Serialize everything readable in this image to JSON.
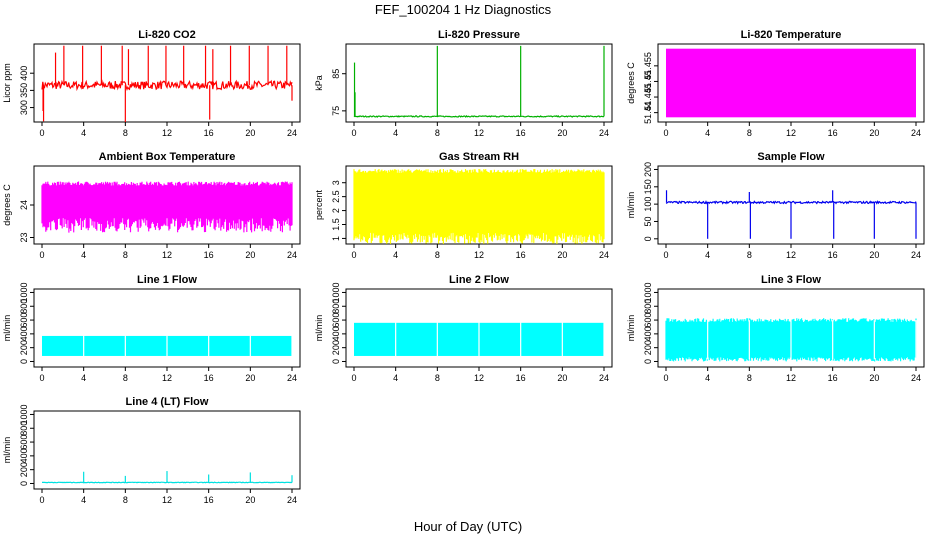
{
  "figure": {
    "title": "FEF_100204  1 Hz Diagnostics",
    "xlabel": "Hour of Day (UTC)"
  },
  "chart_data": [
    {
      "id": "co2",
      "type": "line",
      "title": "Li-820 CO2",
      "ylabel": "Licor ppm",
      "color": "#ff0000",
      "xlim": [
        0,
        24
      ],
      "xticks": [
        0,
        4,
        8,
        12,
        16,
        20,
        24
      ],
      "ylim": [
        258,
        485
      ],
      "yticks": [
        300,
        350,
        400
      ],
      "baseline": 365,
      "noise": 12,
      "spikes": [
        {
          "x": 0.1,
          "y": 290
        },
        {
          "x": 0.15,
          "y": 260
        },
        {
          "x": 1.3,
          "y": 460
        },
        {
          "x": 2.1,
          "y": 480
        },
        {
          "x": 3.9,
          "y": 480
        },
        {
          "x": 5.7,
          "y": 480
        },
        {
          "x": 7.7,
          "y": 480
        },
        {
          "x": 8.0,
          "y": 258
        },
        {
          "x": 8.3,
          "y": 470
        },
        {
          "x": 10.2,
          "y": 480
        },
        {
          "x": 11.9,
          "y": 480
        },
        {
          "x": 13.6,
          "y": 480
        },
        {
          "x": 15.7,
          "y": 480
        },
        {
          "x": 16.1,
          "y": 265
        },
        {
          "x": 16.4,
          "y": 470
        },
        {
          "x": 18.1,
          "y": 480
        },
        {
          "x": 19.9,
          "y": 480
        },
        {
          "x": 21.7,
          "y": 480
        },
        {
          "x": 23.5,
          "y": 480
        },
        {
          "x": 24.0,
          "y": 320
        }
      ]
    },
    {
      "id": "pressure",
      "type": "line",
      "title": "Li-820 Pressure",
      "ylabel": "kPa",
      "color": "#00b000",
      "xlim": [
        0,
        24
      ],
      "xticks": [
        0,
        4,
        8,
        12,
        16,
        20,
        24
      ],
      "ylim": [
        72,
        93
      ],
      "yticks": [
        75,
        85
      ],
      "baseline": 73.5,
      "noise": 0.15,
      "spikes": [
        {
          "x": 0.05,
          "y": 88.0
        },
        {
          "x": 0.1,
          "y": 80.0
        },
        {
          "x": 8.0,
          "y": 92.5
        },
        {
          "x": 16.0,
          "y": 92.5
        },
        {
          "x": 24.0,
          "y": 92.5
        }
      ]
    },
    {
      "id": "licor_temp",
      "type": "band",
      "title": "Li-820 Temperature",
      "ylabel": "degrees C",
      "color": "#ff00ff",
      "xlim": [
        0,
        24
      ],
      "xticks": [
        0,
        4,
        8,
        12,
        16,
        20,
        24
      ],
      "ylim": [
        51.437,
        51.462
      ],
      "yticks": [
        51.44,
        51.445,
        51.45,
        51.455
      ],
      "band": [
        51.4385,
        51.4605
      ]
    },
    {
      "id": "box_temp",
      "type": "band",
      "title": "Ambient Box Temperature",
      "ylabel": "degrees C",
      "color": "#ff00ff",
      "xlim": [
        0,
        24
      ],
      "xticks": [
        0,
        4,
        8,
        12,
        16,
        20,
        24
      ],
      "ylim": [
        22.8,
        25.2
      ],
      "yticks": [
        23.0,
        24.0
      ],
      "band": [
        23.6,
        24.6
      ],
      "band_jitter": 0.45
    },
    {
      "id": "rh",
      "type": "band",
      "title": "Gas Stream RH",
      "ylabel": "percent",
      "color": "#ffff00",
      "xlim": [
        0,
        24
      ],
      "xticks": [
        0,
        4,
        8,
        12,
        16,
        20,
        24
      ],
      "ylim": [
        0.8,
        3.6
      ],
      "yticks": [
        1.0,
        1.5,
        2.0,
        2.5,
        3.0
      ],
      "band": [
        1.2,
        3.35
      ],
      "band_jitter": 0.4
    },
    {
      "id": "sample_flow",
      "type": "line",
      "title": "Sample Flow",
      "ylabel": "ml/min",
      "color": "#0000ee",
      "xlim": [
        0,
        24
      ],
      "xticks": [
        0,
        4,
        8,
        12,
        16,
        20,
        24
      ],
      "ylim": [
        -15,
        210
      ],
      "yticks": [
        0,
        50,
        100,
        150,
        200
      ],
      "baseline": 105,
      "noise": 3,
      "spikes": [
        {
          "x": 0.05,
          "y": 140
        },
        {
          "x": 4.0,
          "y": 0
        },
        {
          "x": 8.0,
          "y": 135
        },
        {
          "x": 8.1,
          "y": 0
        },
        {
          "x": 12.0,
          "y": 0
        },
        {
          "x": 16.0,
          "y": 140
        },
        {
          "x": 16.1,
          "y": 0
        },
        {
          "x": 20.0,
          "y": 0
        },
        {
          "x": 24.0,
          "y": 0
        }
      ]
    },
    {
      "id": "line1",
      "type": "band",
      "title": "Line 1 Flow",
      "ylabel": "ml/min",
      "color": "#00ffff",
      "xlim": [
        0,
        24
      ],
      "xticks": [
        0,
        4,
        8,
        12,
        16,
        20,
        24
      ],
      "ylim": [
        -80,
        1050
      ],
      "yticks": [
        0,
        200,
        400,
        600,
        800,
        1000
      ],
      "band": [
        80,
        370
      ],
      "gaps": [
        4,
        8,
        12,
        16,
        20,
        24
      ]
    },
    {
      "id": "line2",
      "type": "band",
      "title": "Line 2 Flow",
      "ylabel": "ml/min",
      "color": "#00ffff",
      "xlim": [
        0,
        24
      ],
      "xticks": [
        0,
        4,
        8,
        12,
        16,
        20,
        24
      ],
      "ylim": [
        -80,
        1050
      ],
      "yticks": [
        0,
        200,
        400,
        600,
        800,
        1000
      ],
      "band": [
        80,
        560
      ],
      "gaps": [
        4,
        8,
        12,
        16,
        20,
        24
      ]
    },
    {
      "id": "line3",
      "type": "band",
      "title": "Line 3 Flow",
      "ylabel": "ml/min",
      "color": "#00ffff",
      "xlim": [
        0,
        24
      ],
      "xticks": [
        0,
        4,
        8,
        12,
        16,
        20,
        24
      ],
      "ylim": [
        -80,
        1050
      ],
      "yticks": [
        0,
        200,
        400,
        600,
        800,
        1000
      ],
      "band": [
        60,
        570
      ],
      "gaps": [
        4,
        8,
        12,
        16,
        20,
        24
      ],
      "band_jitter": 60
    },
    {
      "id": "line4",
      "type": "line",
      "title": "Line 4 (LT) Flow",
      "ylabel": "ml/min",
      "color": "#00e0e0",
      "xlim": [
        0,
        24
      ],
      "xticks": [
        0,
        4,
        8,
        12,
        16,
        20,
        24
      ],
      "ylim": [
        -80,
        1050
      ],
      "yticks": [
        0,
        200,
        400,
        600,
        800,
        1000
      ],
      "baseline": 15,
      "noise": 4,
      "spikes": [
        {
          "x": 4.0,
          "y": 170
        },
        {
          "x": 8.0,
          "y": 110
        },
        {
          "x": 12.0,
          "y": 180
        },
        {
          "x": 16.0,
          "y": 130
        },
        {
          "x": 20.0,
          "y": 160
        },
        {
          "x": 24.0,
          "y": 120
        }
      ]
    }
  ]
}
